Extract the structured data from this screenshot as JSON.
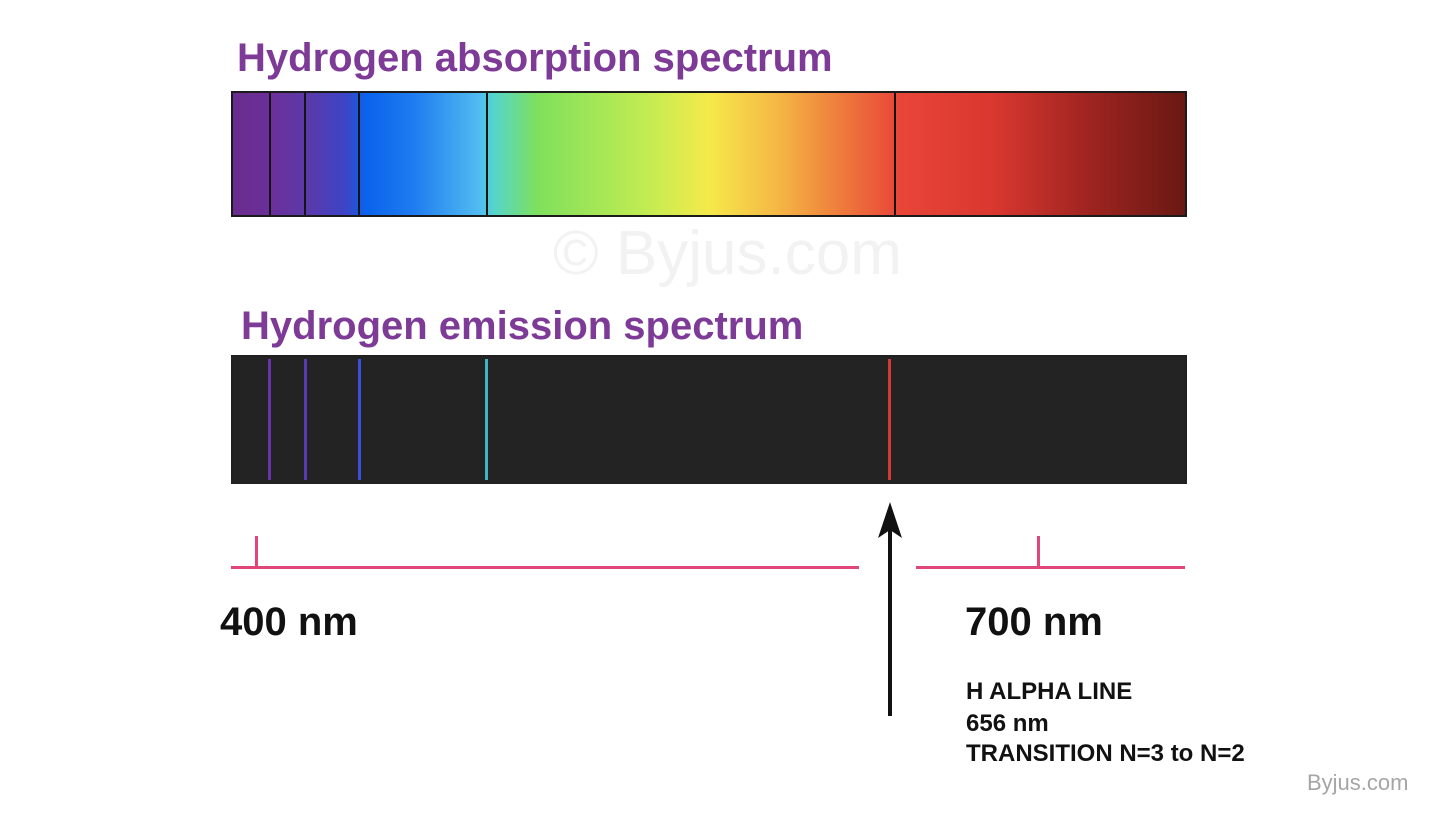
{
  "titles": {
    "absorption": "Hydrogen absorption spectrum",
    "emission": "Hydrogen emission spectrum"
  },
  "scale": {
    "left_label": "400 nm",
    "right_label": "700 nm"
  },
  "annotation": {
    "line1": "H ALPHA LINE",
    "line2": "656 nm",
    "line3": "TRANSITION N=3 to N=2"
  },
  "watermark": "© Byjus.com",
  "brand": "Byjus.com",
  "colors": {
    "title": "#7d3a96",
    "scale_line": "#e0457c",
    "emission_background": "#232323",
    "emission_lines": [
      "#6a35a8",
      "#5a3ab0",
      "#3b4fd8",
      "#3fb6c8",
      "#d23a37"
    ]
  }
}
